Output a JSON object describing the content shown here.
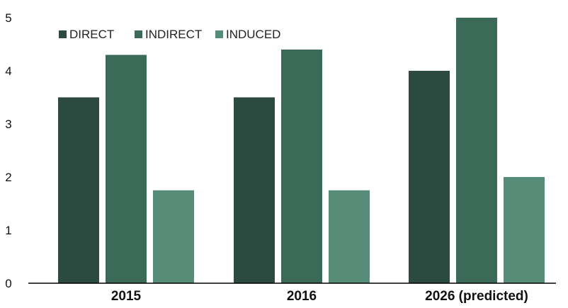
{
  "chart_data": {
    "type": "bar",
    "title": "",
    "xlabel": "",
    "ylabel": "",
    "categories": [
      "2015",
      "2016",
      "2026 (predicted)"
    ],
    "series": [
      {
        "name": "DIRECT",
        "values": [
          3.5,
          3.5,
          4.0
        ],
        "color": "#2d4a40"
      },
      {
        "name": "INDIRECT",
        "values": [
          4.3,
          4.4,
          5.0
        ],
        "color": "#3b6b58"
      },
      {
        "name": "INDUCED",
        "values": [
          1.75,
          1.75,
          2.0
        ],
        "color": "#568c78"
      }
    ],
    "ylim": [
      0,
      5
    ],
    "yticks": [
      "0",
      "1",
      "2",
      "3",
      "4",
      "5"
    ],
    "legend_position": "top-left",
    "grid": false
  }
}
